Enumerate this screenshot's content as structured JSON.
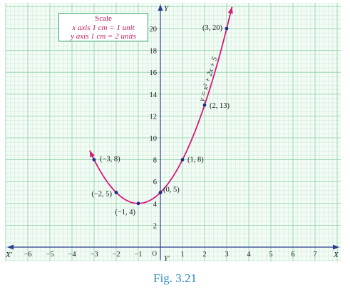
{
  "chart_data": {
    "type": "line",
    "equation": "y = x² + 2x + 5",
    "xlim": [
      -7,
      8
    ],
    "ylim": [
      0,
      21
    ],
    "x_ticks": [
      -6,
      -5,
      -4,
      -3,
      -2,
      -1,
      1,
      2,
      3,
      4,
      5,
      6,
      7
    ],
    "y_ticks": [
      2,
      4,
      6,
      8,
      10,
      12,
      14,
      16,
      18,
      20
    ],
    "x_axis_labels": {
      "negative": "X'",
      "positive": "X"
    },
    "y_axis_labels": {
      "positive": "Y",
      "negative": "Y'"
    },
    "origin_label": "O",
    "points": [
      {
        "x": -3,
        "y": 8,
        "label": "(−3, 8)"
      },
      {
        "x": -2,
        "y": 5,
        "label": "(−2, 5)"
      },
      {
        "x": -1,
        "y": 4,
        "label": "(−1, 4)"
      },
      {
        "x": 0,
        "y": 5,
        "label": "(0, 5)"
      },
      {
        "x": 1,
        "y": 8,
        "label": "(1, 8)"
      },
      {
        "x": 2,
        "y": 13,
        "label": "(2, 13)"
      },
      {
        "x": 3,
        "y": 20,
        "label": "(3, 20)"
      }
    ],
    "curve_color": "#d81b7a",
    "grid": true,
    "grid_color": "#8fd1a8"
  },
  "scale": {
    "title": "Scale",
    "x_line": "x axis 1 cm = 1 unit",
    "y_line": "y axis 1 cm = 2 units"
  },
  "caption": "Fig. 3.21"
}
